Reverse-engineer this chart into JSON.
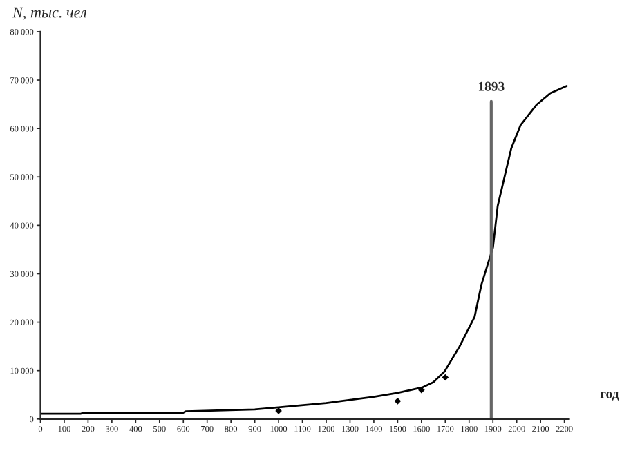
{
  "chart_data": {
    "type": "line",
    "ylabel": "N, тыс. чел",
    "xlabel": "год",
    "series": [
      {
        "color": "#000000",
        "x": [
          0,
          170,
          180,
          600,
          610,
          900,
          1000,
          1200,
          1400,
          1500,
          1602,
          1650,
          1698,
          1760,
          1823,
          1852,
          1900,
          1920,
          1977,
          2016,
          2083,
          2141,
          2210
        ],
        "values": [
          1100,
          1100,
          1300,
          1300,
          1600,
          2000,
          2400,
          3300,
          4600,
          5400,
          6500,
          7600,
          9900,
          15000,
          21100,
          27800,
          35400,
          44000,
          55900,
          60700,
          64900,
          67300,
          68800
        ]
      },
      {
        "type": "scatter",
        "color": "#000000",
        "marker": "diamond",
        "x": [
          1000,
          1500,
          1600,
          1700
        ],
        "values": [
          1700,
          3700,
          6000,
          8600
        ]
      }
    ],
    "xlim": [
      0,
      2220
    ],
    "xticks": [
      0,
      100,
      200,
      300,
      400,
      500,
      600,
      700,
      800,
      900,
      1000,
      1100,
      1200,
      1300,
      1400,
      1500,
      1600,
      1700,
      1800,
      1900,
      2000,
      2100,
      2200
    ],
    "ylim": [
      0,
      80000
    ],
    "yticks": [
      {
        "value": 0,
        "label": "0"
      },
      {
        "value": 10000,
        "label": "10 000"
      },
      {
        "value": 20000,
        "label": "20 000"
      },
      {
        "value": 30000,
        "label": "30 000"
      },
      {
        "value": 40000,
        "label": "40 000"
      },
      {
        "value": 50000,
        "label": "50 000"
      },
      {
        "value": 60000,
        "label": "60 000"
      },
      {
        "value": 70000,
        "label": "70 000"
      },
      {
        "value": 80000,
        "label": "80 000"
      }
    ],
    "ref_lines": [
      {
        "axis": "x",
        "value": 1893,
        "label": "1893",
        "color": "#666666"
      }
    ],
    "grid": false,
    "legend": false
  }
}
